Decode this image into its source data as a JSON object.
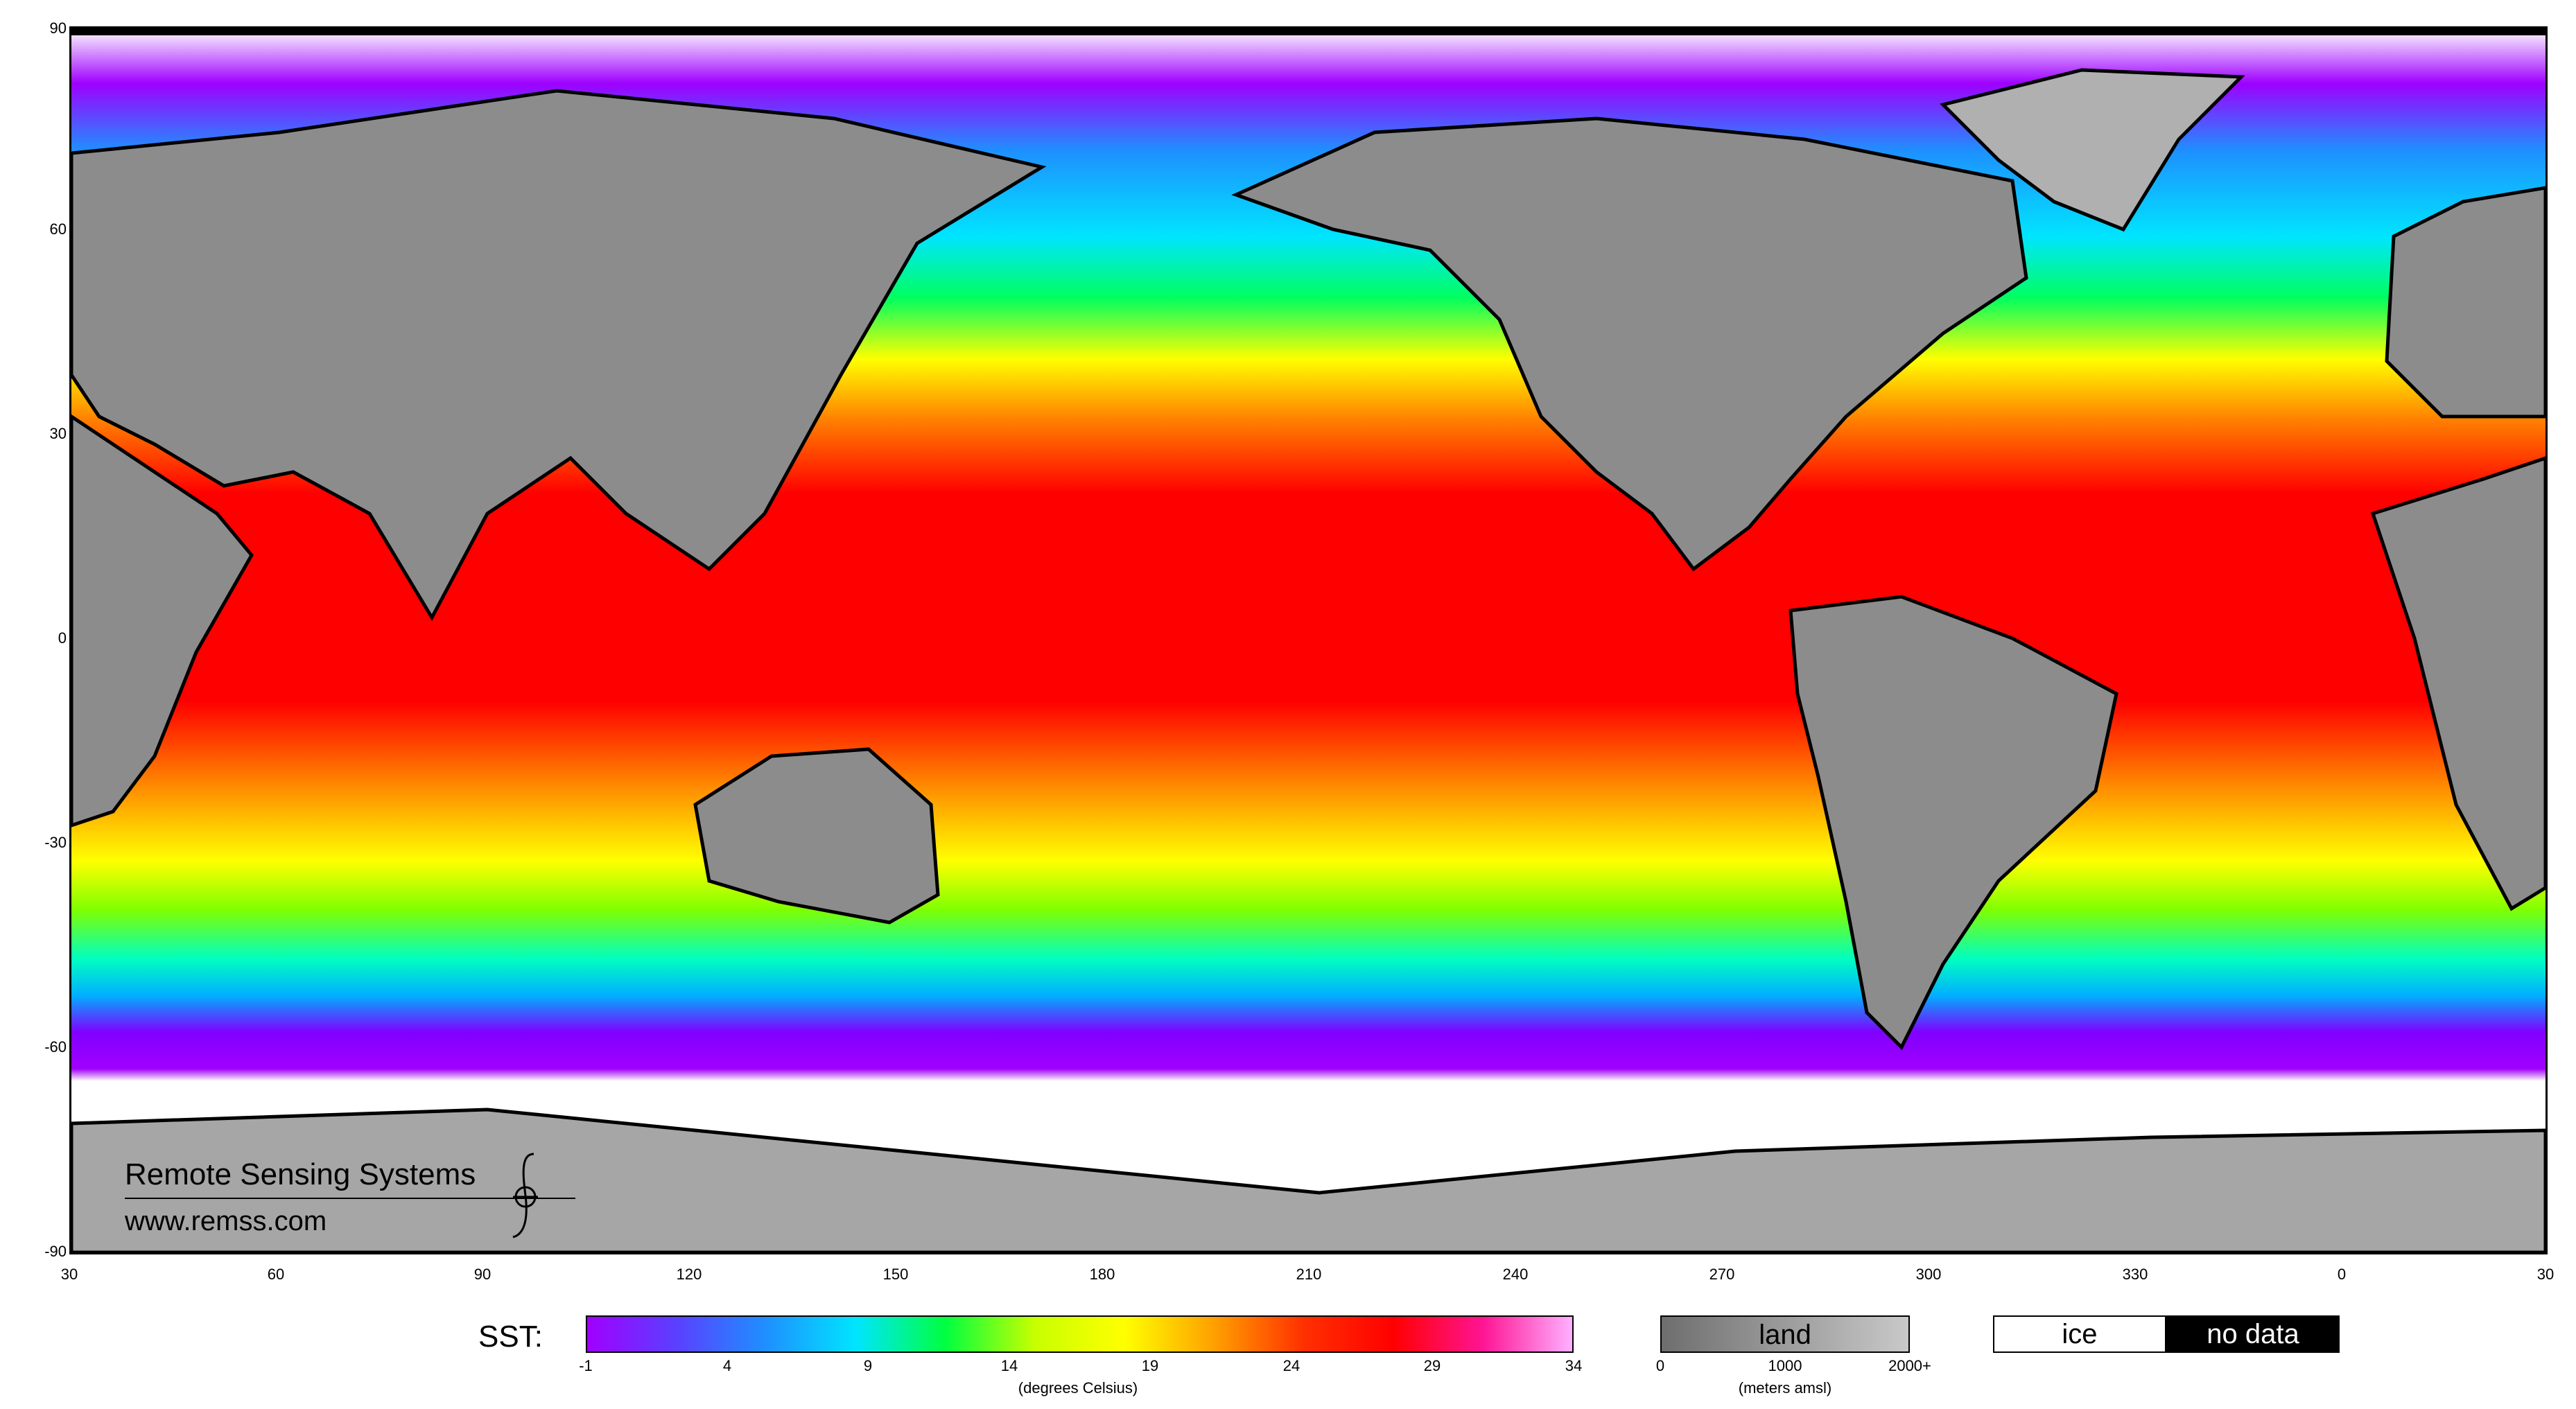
{
  "map": {
    "y_ticks": [
      "90",
      "60",
      "30",
      "0",
      "-30",
      "-60",
      "-90"
    ],
    "x_ticks": [
      "30",
      "60",
      "90",
      "120",
      "150",
      "180",
      "210",
      "240",
      "270",
      "300",
      "330",
      "0",
      "30"
    ]
  },
  "watermark": {
    "org": "Remote Sensing Systems",
    "url": "www.remss.com"
  },
  "legend": {
    "sst_label": "SST:",
    "sst_ticks": [
      "-1",
      "4",
      "9",
      "14",
      "19",
      "24",
      "29",
      "34"
    ],
    "sst_unit": "(degrees Celsius)",
    "sst_colors": [
      "#a000ff",
      "#5a40ff",
      "#1e90ff",
      "#00e5ff",
      "#00ff40",
      "#c8ff00",
      "#ffff00",
      "#ffa000",
      "#ff3000",
      "#ff0000",
      "#ff1493",
      "#ffb0ff"
    ],
    "land_label": "land",
    "land_ticks": [
      "0",
      "1000",
      "2000+"
    ],
    "land_unit": "(meters amsl)",
    "ice_label": "ice",
    "nodata_label": "no data"
  }
}
